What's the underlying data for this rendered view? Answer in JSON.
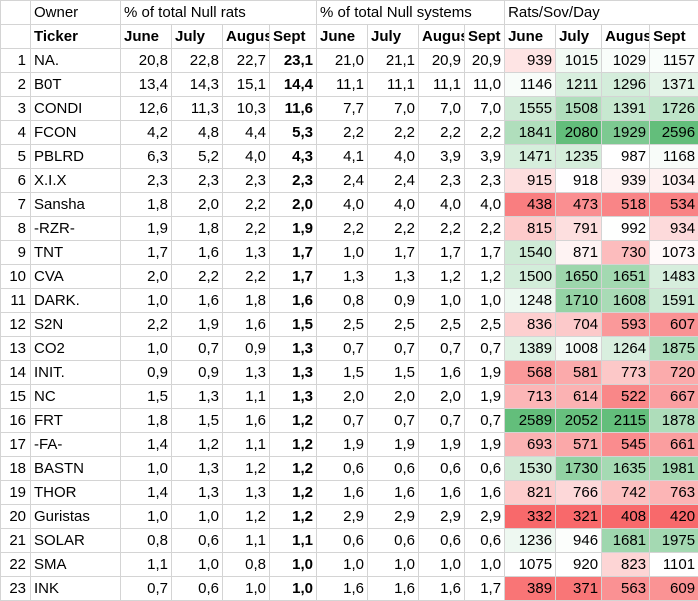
{
  "header": {
    "owner": "Owner",
    "rats_group": "% of total Null rats",
    "systems_group": "% of total Null systems",
    "rsd_group": "Rats/Sov/Day"
  },
  "subheader": {
    "ticker": "Ticker",
    "rats_months": [
      "June",
      "July",
      "August",
      "Sept"
    ],
    "systems_months": [
      "June",
      "July",
      "August",
      "Sept"
    ],
    "rsd_months": [
      "June",
      "July",
      "August",
      "Sept"
    ]
  },
  "rows": [
    {
      "n": "1",
      "ticker": "NA.",
      "rats": [
        "20,8",
        "22,8",
        "22,7",
        "23,1"
      ],
      "sys": [
        "21,0",
        "21,1",
        "20,9",
        "20,9"
      ],
      "rsd": [
        939,
        1015,
        1029,
        1157
      ]
    },
    {
      "n": "2",
      "ticker": "B0T",
      "rats": [
        "13,4",
        "14,3",
        "15,1",
        "14,4"
      ],
      "sys": [
        "11,1",
        "11,1",
        "11,1",
        "11,0"
      ],
      "rsd": [
        1146,
        1211,
        1296,
        1371
      ]
    },
    {
      "n": "3",
      "ticker": "CONDI",
      "rats": [
        "12,6",
        "11,3",
        "10,3",
        "11,6"
      ],
      "sys": [
        "7,7",
        "7,0",
        "7,0",
        "7,0"
      ],
      "rsd": [
        1555,
        1508,
        1391,
        1726
      ]
    },
    {
      "n": "4",
      "ticker": "FCON",
      "rats": [
        "4,2",
        "4,8",
        "4,4",
        "5,3"
      ],
      "sys": [
        "2,2",
        "2,2",
        "2,2",
        "2,2"
      ],
      "rsd": [
        1841,
        2080,
        1929,
        2596
      ]
    },
    {
      "n": "5",
      "ticker": "PBLRD",
      "rats": [
        "6,3",
        "5,2",
        "4,0",
        "4,3"
      ],
      "sys": [
        "4,1",
        "4,0",
        "3,9",
        "3,9"
      ],
      "rsd": [
        1471,
        1235,
        987,
        1168
      ]
    },
    {
      "n": "6",
      "ticker": "X.I.X",
      "rats": [
        "2,3",
        "2,3",
        "2,3",
        "2,3"
      ],
      "sys": [
        "2,4",
        "2,4",
        "2,3",
        "2,3"
      ],
      "rsd": [
        915,
        918,
        939,
        1034
      ]
    },
    {
      "n": "7",
      "ticker": "Sansha",
      "rats": [
        "1,8",
        "2,0",
        "2,2",
        "2,0"
      ],
      "sys": [
        "4,0",
        "4,0",
        "4,0",
        "4,0"
      ],
      "rsd": [
        438,
        473,
        518,
        534
      ]
    },
    {
      "n": "8",
      "ticker": "-RZR-",
      "rats": [
        "1,9",
        "1,8",
        "2,2",
        "1,9"
      ],
      "sys": [
        "2,2",
        "2,2",
        "2,2",
        "2,2"
      ],
      "rsd": [
        815,
        791,
        992,
        934
      ]
    },
    {
      "n": "9",
      "ticker": "TNT",
      "rats": [
        "1,7",
        "1,6",
        "1,3",
        "1,7"
      ],
      "sys": [
        "1,0",
        "1,7",
        "1,7",
        "1,7"
      ],
      "rsd": [
        1540,
        871,
        730,
        1073
      ]
    },
    {
      "n": "10",
      "ticker": "CVA",
      "rats": [
        "2,0",
        "2,2",
        "2,2",
        "1,7"
      ],
      "sys": [
        "1,3",
        "1,3",
        "1,2",
        "1,2"
      ],
      "rsd": [
        1500,
        1650,
        1651,
        1483
      ]
    },
    {
      "n": "11",
      "ticker": "DARK.",
      "rats": [
        "1,0",
        "1,6",
        "1,8",
        "1,6"
      ],
      "sys": [
        "0,8",
        "0,9",
        "1,0",
        "1,0"
      ],
      "rsd": [
        1248,
        1710,
        1608,
        1591
      ]
    },
    {
      "n": "12",
      "ticker": "S2N",
      "rats": [
        "2,2",
        "1,9",
        "1,6",
        "1,5"
      ],
      "sys": [
        "2,5",
        "2,5",
        "2,5",
        "2,5"
      ],
      "rsd": [
        836,
        704,
        593,
        607
      ]
    },
    {
      "n": "13",
      "ticker": "CO2",
      "rats": [
        "1,0",
        "0,7",
        "0,9",
        "1,3"
      ],
      "sys": [
        "0,7",
        "0,7",
        "0,7",
        "0,7"
      ],
      "rsd": [
        1389,
        1008,
        1264,
        1875
      ]
    },
    {
      "n": "14",
      "ticker": "INIT.",
      "rats": [
        "0,9",
        "0,9",
        "1,3",
        "1,3"
      ],
      "sys": [
        "1,5",
        "1,5",
        "1,6",
        "1,9"
      ],
      "rsd": [
        568,
        581,
        773,
        720
      ]
    },
    {
      "n": "15",
      "ticker": "NC",
      "rats": [
        "1,5",
        "1,3",
        "1,1",
        "1,3"
      ],
      "sys": [
        "2,0",
        "2,0",
        "2,0",
        "1,9"
      ],
      "rsd": [
        713,
        614,
        522,
        667
      ]
    },
    {
      "n": "16",
      "ticker": "FRT",
      "rats": [
        "1,8",
        "1,5",
        "1,6",
        "1,2"
      ],
      "sys": [
        "0,7",
        "0,7",
        "0,7",
        "0,7"
      ],
      "rsd": [
        2589,
        2052,
        2115,
        1878
      ]
    },
    {
      "n": "17",
      "ticker": "-FA-",
      "rats": [
        "1,4",
        "1,2",
        "1,1",
        "1,2"
      ],
      "sys": [
        "1,9",
        "1,9",
        "1,9",
        "1,9"
      ],
      "rsd": [
        693,
        571,
        545,
        661
      ]
    },
    {
      "n": "18",
      "ticker": "BASTN",
      "rats": [
        "1,0",
        "1,3",
        "1,2",
        "1,2"
      ],
      "sys": [
        "0,6",
        "0,6",
        "0,6",
        "0,6"
      ],
      "rsd": [
        1530,
        1730,
        1635,
        1981
      ]
    },
    {
      "n": "19",
      "ticker": "THOR",
      "rats": [
        "1,4",
        "1,3",
        "1,3",
        "1,2"
      ],
      "sys": [
        "1,6",
        "1,6",
        "1,6",
        "1,6"
      ],
      "rsd": [
        821,
        766,
        742,
        763
      ]
    },
    {
      "n": "20",
      "ticker": "Guristas",
      "rats": [
        "1,0",
        "1,0",
        "1,2",
        "1,2"
      ],
      "sys": [
        "2,9",
        "2,9",
        "2,9",
        "2,9"
      ],
      "rsd": [
        332,
        321,
        408,
        420
      ]
    },
    {
      "n": "21",
      "ticker": "SOLAR",
      "rats": [
        "0,8",
        "0,6",
        "1,1",
        "1,1"
      ],
      "sys": [
        "0,6",
        "0,6",
        "0,6",
        "0,6"
      ],
      "rsd": [
        1236,
        946,
        1681,
        1975
      ]
    },
    {
      "n": "22",
      "ticker": "SMA",
      "rats": [
        "1,1",
        "1,0",
        "0,8",
        "1,0"
      ],
      "sys": [
        "1,0",
        "1,0",
        "1,0",
        "1,0"
      ],
      "rsd": [
        1075,
        920,
        823,
        1101
      ]
    },
    {
      "n": "23",
      "ticker": "INK",
      "rats": [
        "0,7",
        "0,6",
        "1,0",
        "1,0"
      ],
      "sys": [
        "1,6",
        "1,6",
        "1,6",
        "1,7"
      ],
      "rsd": [
        389,
        371,
        563,
        609
      ]
    }
  ],
  "colors": {
    "low": "#f8696b",
    "mid": "#ffffff",
    "high": "#63be7b"
  }
}
